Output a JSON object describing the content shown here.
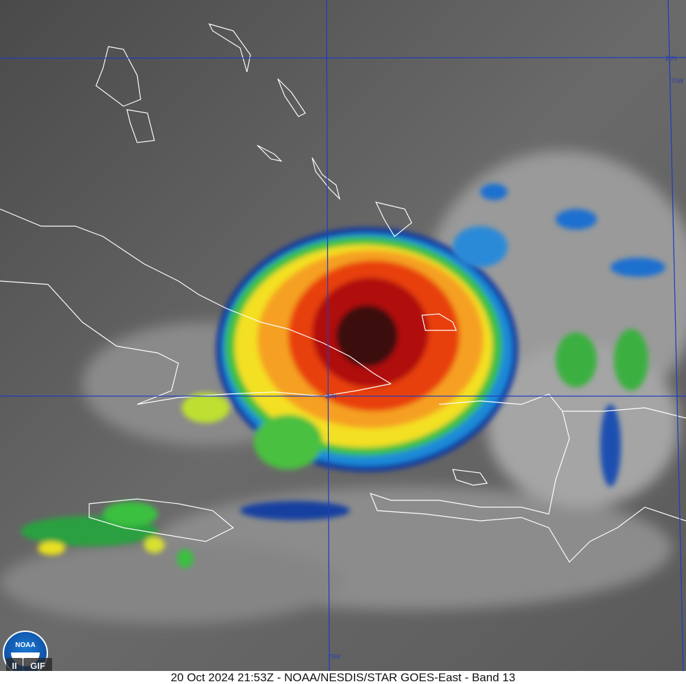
{
  "caption": "20 Oct 2024 21:53Z - NOAA/NESDIS/STAR GOES-East - Band 13",
  "logo_text": "NOAA",
  "controls": {
    "pause_label": "II",
    "gif_label": "GIF"
  },
  "grid_labels": {
    "lat_25": "25N",
    "lon_70": "70W",
    "lat_20": "20N",
    "lon_75": "75W"
  },
  "colors": {
    "grid": "#1f3fbf",
    "coast": "#ffffff"
  }
}
